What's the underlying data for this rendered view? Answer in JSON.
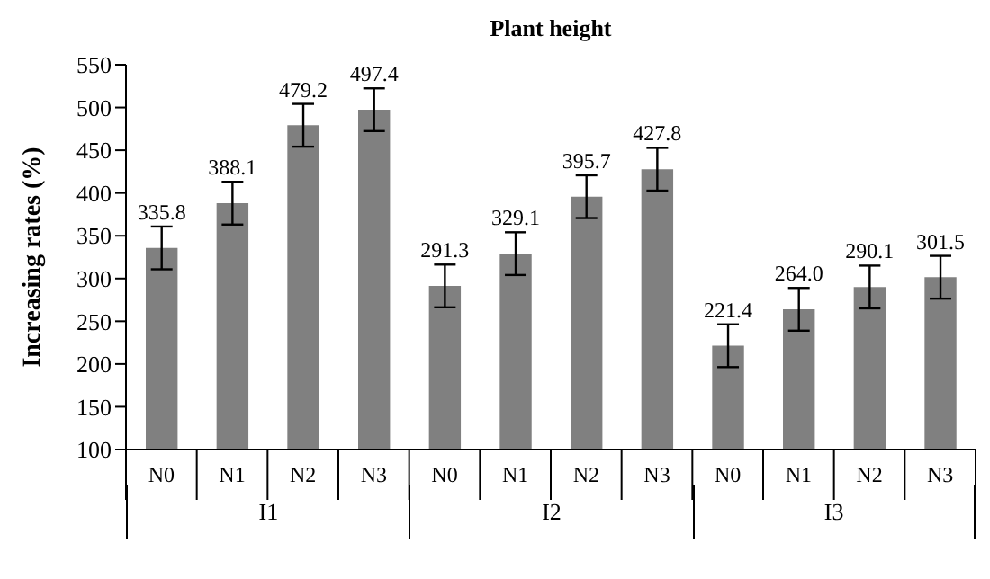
{
  "chart_data": {
    "type": "bar",
    "title": "Plant height",
    "ylabel": "Increasing rates (%)",
    "categories": [
      "N0",
      "N1",
      "N2",
      "N3",
      "N0",
      "N1",
      "N2",
      "N3",
      "N0",
      "N1",
      "N2",
      "N3"
    ],
    "values": [
      335.8,
      388.1,
      479.2,
      497.4,
      291.3,
      329.1,
      395.7,
      427.8,
      221.4,
      264.0,
      290.1,
      301.5
    ],
    "value_labels": [
      "335.8",
      "388.1",
      "479.2",
      "497.4",
      "291.3",
      "329.1",
      "395.7",
      "427.8",
      "221.4",
      "264.0",
      "290.1",
      "301.5"
    ],
    "errors": [
      25,
      25,
      25,
      25,
      25,
      25,
      25,
      25,
      25,
      25,
      25,
      25
    ],
    "color": "#808080",
    "ylim": [
      100,
      550
    ],
    "yticks": [
      100,
      150,
      200,
      250,
      300,
      350,
      400,
      450,
      500,
      550
    ],
    "grid": false,
    "legend": false,
    "annotations": [
      "I1",
      "I2",
      "I3"
    ]
  }
}
